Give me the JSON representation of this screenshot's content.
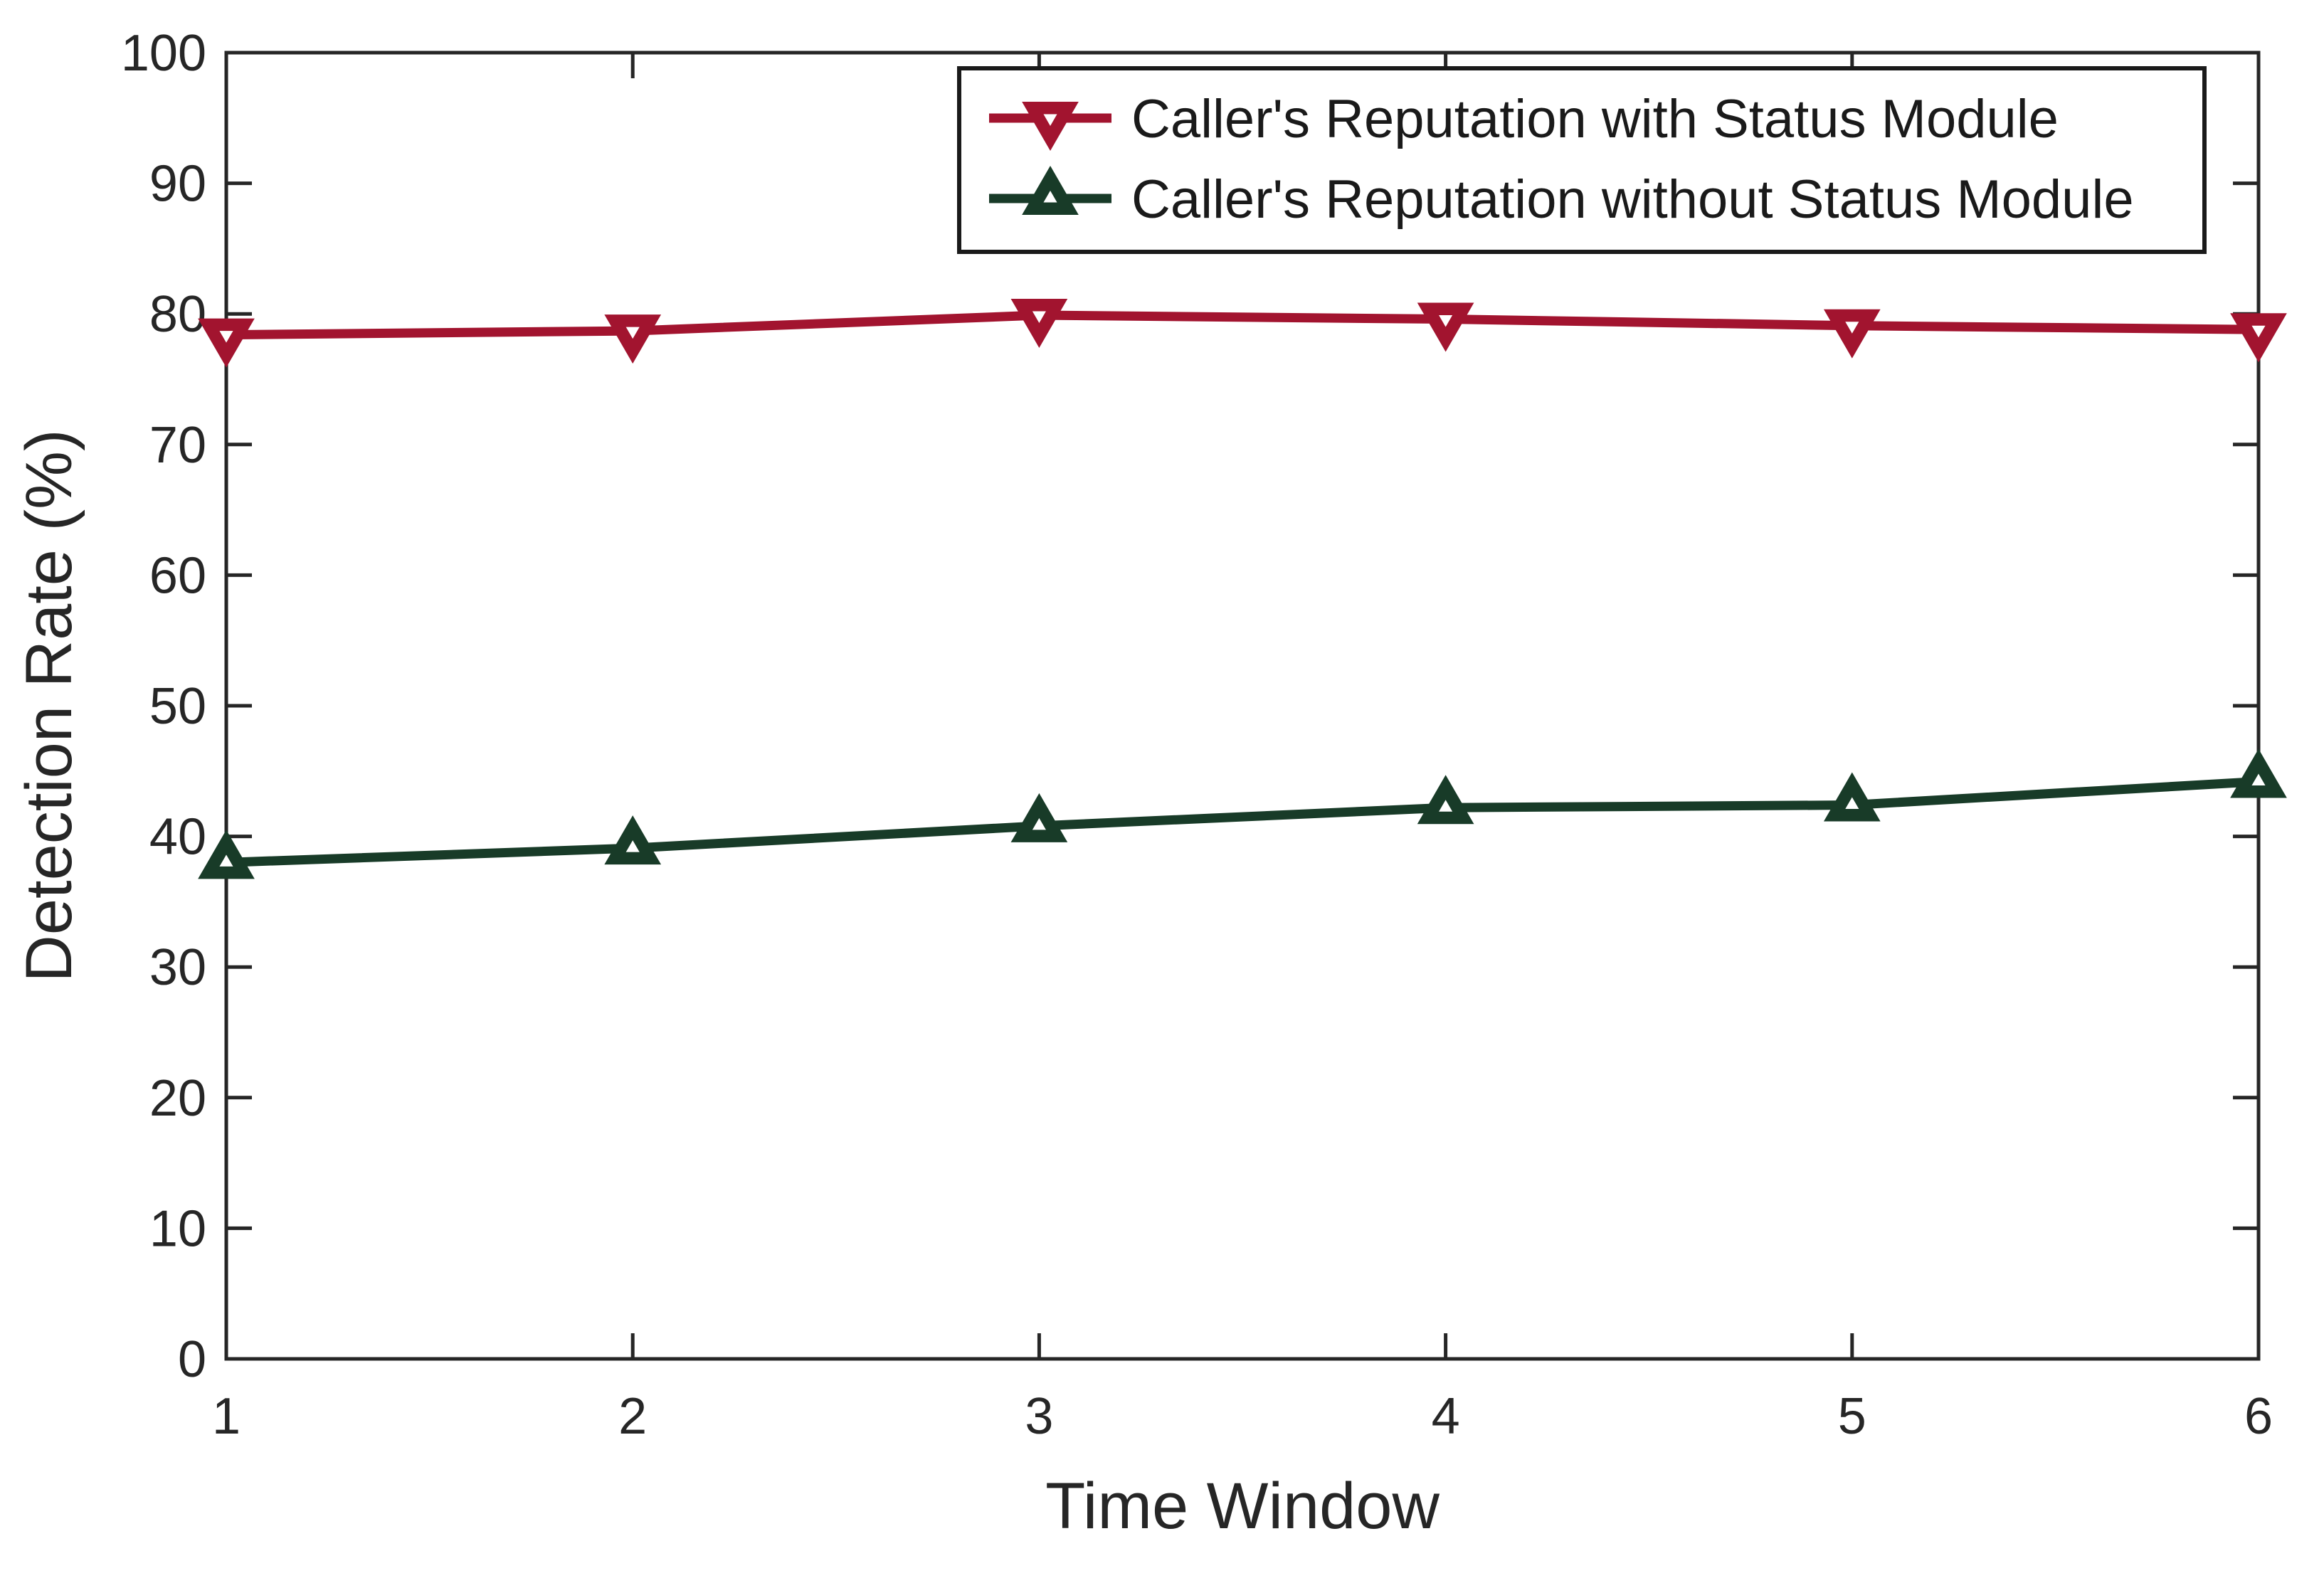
{
  "figure": {
    "background": "#ffffff"
  },
  "chart_data": {
    "type": "line",
    "title": "",
    "xlabel": "Time Window",
    "ylabel": "Detection Rate (%)",
    "x": [
      1,
      2,
      3,
      4,
      5,
      6
    ],
    "series": [
      {
        "name": "Caller's Reputation with Status Module",
        "color": "#a2142f",
        "marker": "triangle-down",
        "values": [
          78.4,
          78.7,
          79.9,
          79.6,
          79.1,
          78.8
        ]
      },
      {
        "name": "Caller's Reputation without Status Module",
        "color": "#183b28",
        "marker": "triangle-up",
        "values": [
          38.0,
          39.1,
          40.8,
          42.2,
          42.4,
          44.2
        ]
      }
    ],
    "xlim": [
      1,
      6
    ],
    "ylim": [
      0,
      100
    ],
    "xticks": [
      1,
      2,
      3,
      4,
      5,
      6
    ],
    "yticks": [
      0,
      10,
      20,
      30,
      40,
      50,
      60,
      70,
      80,
      90,
      100
    ],
    "grid": false,
    "legend_position": "top-right-inside",
    "axis_color": "#262626",
    "text_color": "#262626",
    "legend_border_color": "#1a1a1a",
    "legend_background": "#ffffff"
  }
}
